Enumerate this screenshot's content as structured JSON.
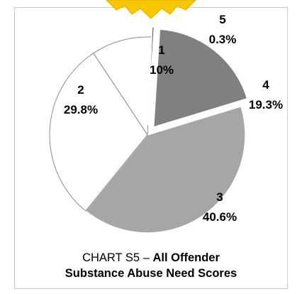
{
  "chart_data": {
    "type": "pie",
    "categories": [
      "1",
      "2",
      "3",
      "4",
      "5"
    ],
    "values": [
      10,
      29.8,
      40.6,
      19.3,
      0.3
    ],
    "value_labels": [
      "10%",
      "29.8%",
      "40.6%",
      "19.3%",
      "0.3%"
    ],
    "exploded": [
      "4",
      "5"
    ],
    "colors": {
      "1": "#ffffff",
      "2": "#ffffff",
      "3": "#a6a6a6",
      "4": "#808080",
      "5": "#404040"
    },
    "title": {
      "prefix": "CHART S5",
      "dash": "–",
      "line1": "All Offender",
      "line2": "Substance Abuse Need Scores"
    },
    "legend": "none",
    "decoration": "sunburst-top"
  }
}
